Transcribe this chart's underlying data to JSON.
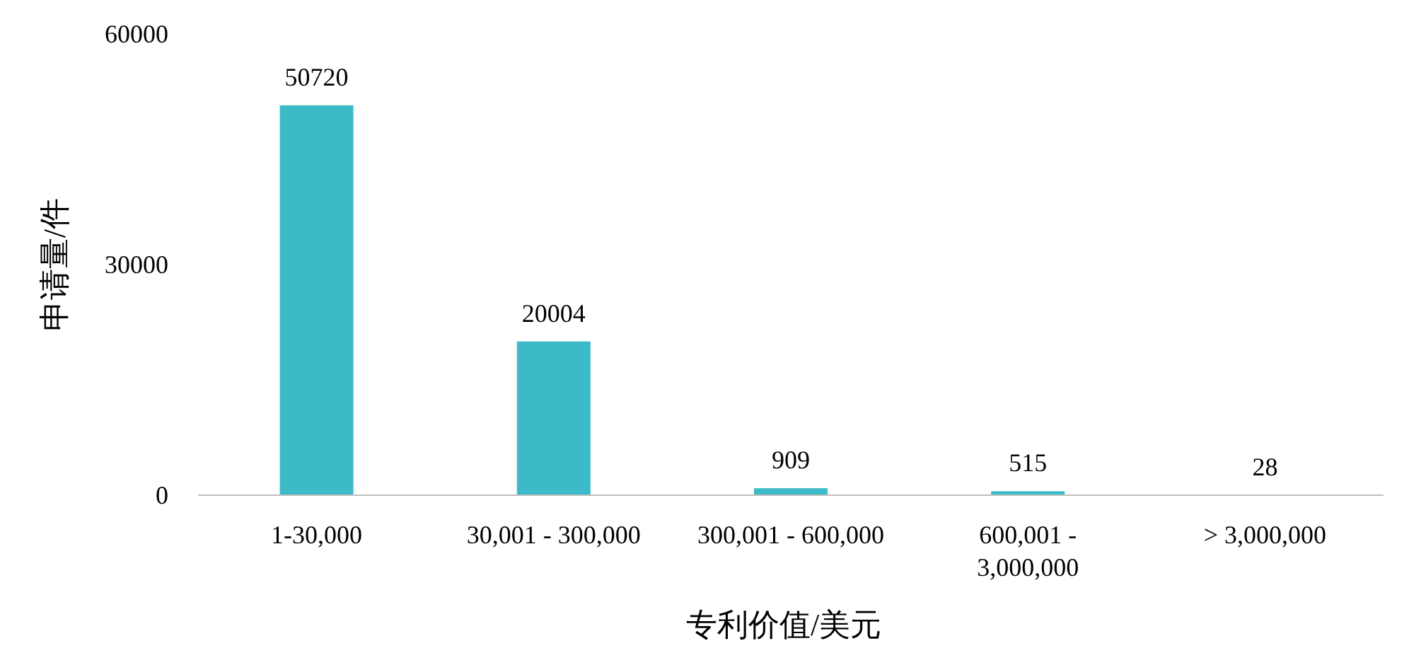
{
  "chart_data": {
    "type": "bar",
    "xlabel": "专利价值/美元",
    "ylabel": "申请量/件",
    "categories": [
      "1-30,000",
      "30,001 - 300,000",
      "300,001 - 600,000",
      "600,001 - 3,000,000",
      "> 3,000,000"
    ],
    "values": [
      50720,
      20004,
      909,
      515,
      28
    ],
    "color": "#3dbac8",
    "ylim": [
      0,
      60000
    ],
    "yticks": [
      0,
      30000,
      60000
    ],
    "data_labels": true,
    "grid": false
  }
}
